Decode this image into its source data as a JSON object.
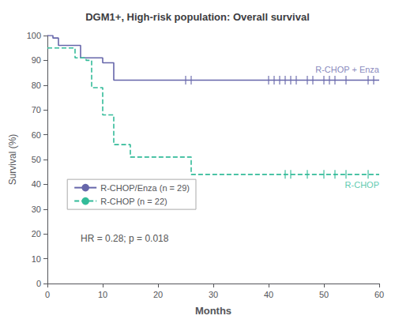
{
  "chart_data": {
    "type": "line",
    "title": "DGM1+, High-risk population: Overall survival",
    "xlabel": "Months",
    "ylabel": "Survival (%)",
    "xlim": [
      0,
      60
    ],
    "ylim": [
      0,
      100
    ],
    "xticks": [
      0,
      10,
      20,
      30,
      40,
      50,
      60
    ],
    "yticks": [
      0,
      10,
      20,
      30,
      40,
      50,
      60,
      70,
      80,
      90,
      100
    ],
    "grid": false,
    "legend": "left",
    "annotations": [
      "HR = 0.28; p = 0.018"
    ],
    "series": [
      {
        "name": "R-CHOP/Enza (n = 29)",
        "label": "R-CHOP + Enza",
        "color": "#6666aa",
        "line_style": "solid",
        "marker": "tick",
        "x": [
          0,
          1,
          2,
          4,
          6,
          8,
          10,
          11,
          12,
          13,
          60
        ],
        "values": [
          100,
          99,
          96,
          96,
          91,
          91,
          89,
          89,
          82,
          82,
          82
        ],
        "censor_x": [
          25,
          26,
          40,
          41,
          42,
          43,
          44,
          45,
          47,
          48,
          50,
          51,
          52,
          54,
          58,
          59
        ],
        "censor_values": [
          82,
          82,
          82,
          82,
          82,
          82,
          82,
          82,
          82,
          82,
          82,
          82,
          82,
          82,
          82,
          82
        ]
      },
      {
        "name": "R-CHOP (n = 22)",
        "label": "R-CHOP",
        "color": "#33bb99",
        "line_style": "dashed",
        "marker": "tick",
        "x": [
          0,
          4,
          5,
          6,
          7,
          8,
          9,
          10,
          11,
          12,
          13,
          15,
          17,
          25,
          26,
          32,
          33,
          40,
          60
        ],
        "values": [
          95,
          95,
          91,
          91,
          90,
          79,
          79,
          68,
          68,
          56,
          56,
          51,
          51,
          51,
          44,
          44,
          44,
          44,
          44
        ],
        "censor_x": [
          43,
          44,
          47,
          50,
          52,
          54,
          58
        ],
        "censor_values": [
          44,
          44,
          44,
          44,
          44,
          44,
          44
        ]
      }
    ]
  }
}
